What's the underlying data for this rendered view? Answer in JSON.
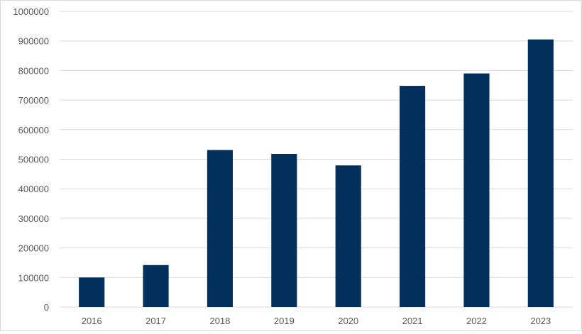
{
  "chart_data": {
    "type": "bar",
    "title": "",
    "xlabel": "",
    "ylabel": "",
    "categories": [
      "2016",
      "2017",
      "2018",
      "2019",
      "2020",
      "2021",
      "2022",
      "2023"
    ],
    "values": [
      100000,
      142000,
      531000,
      518000,
      479000,
      748000,
      790000,
      905000
    ],
    "ylim": [
      0,
      1000000
    ],
    "yticks": [
      "0",
      "100000",
      "200000",
      "300000",
      "400000",
      "500000",
      "600000",
      "700000",
      "800000",
      "900000",
      "1000000"
    ],
    "grid": true,
    "legend": "none",
    "colors": {
      "bar": "#00305B",
      "grid": "#d9d9d9",
      "tick_text": "#595959"
    }
  }
}
